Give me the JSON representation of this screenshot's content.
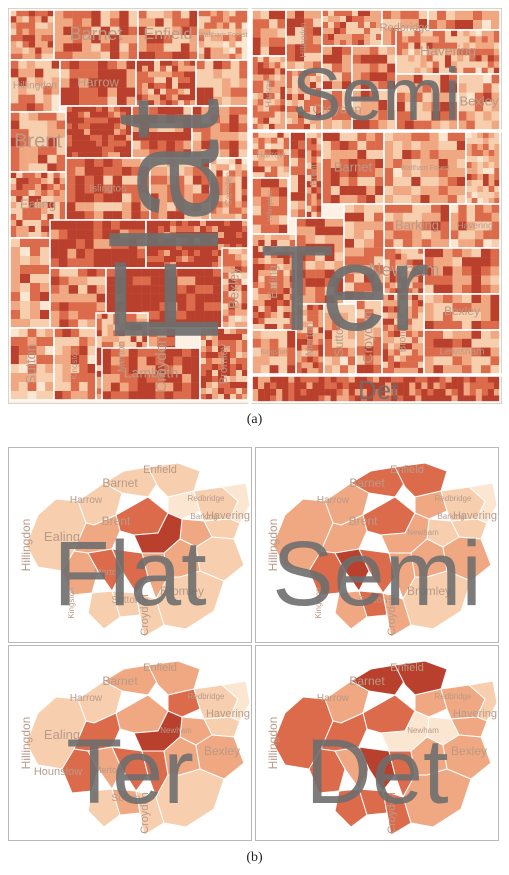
{
  "palette": {
    "lightest": "#fbe6d2",
    "light": "#f7cfae",
    "mid": "#f0a882",
    "dark": "#dc6b4c",
    "darkest": "#b9402c",
    "border": "#ffffff",
    "frame": "#b8b8b8",
    "big_label": "#6e6e6e",
    "borough_label": "#b89a88"
  },
  "treemap": {
    "caption": "(a)",
    "type_labels": {
      "flat": "Flat",
      "semi": "Semi",
      "ter": "Ter",
      "det": "Det"
    },
    "boroughs": [
      "Barnet",
      "Enfield",
      "Waltham Forest",
      "Hillingdon",
      "Harrow",
      "Brent",
      "Ealing",
      "Islington",
      "Camden",
      "Kingston",
      "Merton",
      "Croydon",
      "Sutton",
      "Lambeth",
      "Bromley",
      "Bexley",
      "Redbridge",
      "Havering",
      "Barking",
      "Newham",
      "Lewisham",
      "Kingston",
      "Bexley",
      "Redbridge",
      "Havering",
      "Croydon",
      "Bromley",
      "Sutton",
      "Merton",
      "Enfield",
      "Barking",
      "Newham",
      "Ealing",
      "Harrow",
      "Hillingdon",
      "Bexley",
      "Lewisham"
    ]
  },
  "maps": {
    "caption": "(b)",
    "panels": [
      {
        "type_label": "Flat",
        "borough_labels": [
          "Enfield",
          "Barnet",
          "Harrow",
          "Hillingdon",
          "Brent",
          "Ealing",
          "Redbridge",
          "Havering",
          "Barking",
          "Kingston",
          "Merton",
          "Sutton",
          "Croydon",
          "Bromley"
        ]
      },
      {
        "type_label": "Semi",
        "borough_labels": [
          "Enfield",
          "Barnet",
          "Harrow",
          "Hillingdon",
          "Brent",
          "Redbridge",
          "Havering",
          "Barking",
          "Newham",
          "Kingston",
          "Sutton",
          "Croydon",
          "Bromley"
        ]
      },
      {
        "type_label": "Ter",
        "borough_labels": [
          "Enfield",
          "Barnet",
          "Harrow",
          "Hillingdon",
          "Ealing",
          "Redbridge",
          "Havering",
          "Newham",
          "Hounslow",
          "Merton",
          "Sutton",
          "Croydon",
          "Bexley"
        ]
      },
      {
        "type_label": "Det",
        "borough_labels": [
          "Enfield",
          "Barnet",
          "Harrow",
          "Hillingdon",
          "Redbridge",
          "Havering",
          "Newham",
          "Bexley",
          "Croydon"
        ]
      }
    ]
  }
}
